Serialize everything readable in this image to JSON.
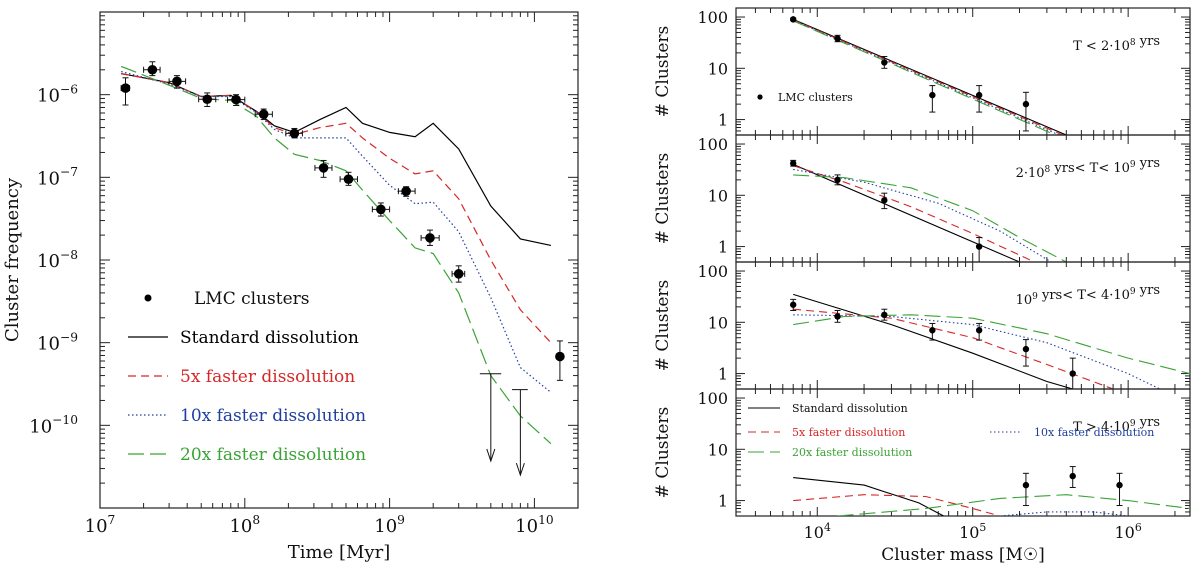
{
  "chart_data": [
    {
      "type": "line",
      "xlabel": "Time [Myr]",
      "ylabel": "Cluster frequency",
      "xscale": "log",
      "yscale": "log",
      "xlim": [
        10000000,
        20000000000
      ],
      "ylim": [
        1e-11,
        1e-05
      ],
      "xticks": [
        {
          "v": 10000000,
          "m": "10",
          "e": "7"
        },
        {
          "v": 100000000,
          "m": "10",
          "e": "8"
        },
        {
          "v": 1000000000,
          "m": "10",
          "e": "9"
        },
        {
          "v": 10000000000,
          "m": "10",
          "e": "10"
        }
      ],
      "yticks": [
        {
          "v": 1e-06,
          "m": "10",
          "e": "−6"
        },
        {
          "v": 1e-07,
          "m": "10",
          "e": "−7"
        },
        {
          "v": 1e-08,
          "m": "10",
          "e": "−8"
        },
        {
          "v": 1e-09,
          "m": "10",
          "e": "−9"
        },
        {
          "v": 1e-10,
          "m": "10",
          "e": "−10"
        }
      ],
      "legend_position": "bottom-left",
      "legend": [
        {
          "label": "LMC clusters",
          "style": "points",
          "color": "#000000"
        },
        {
          "label": "Standard dissolution",
          "style": "solid",
          "color": "#000000"
        },
        {
          "label": "5x faster dissolution",
          "style": "dashed",
          "color": "#d62728"
        },
        {
          "label": "10x faster dissolution",
          "style": "dotted",
          "color": "#1f3fa0"
        },
        {
          "label": "20x faster dissolution",
          "style": "longdash",
          "color": "#3aa335"
        }
      ],
      "series": [
        {
          "label_ref": 1,
          "x": [
            14000000,
            30000000,
            50000000,
            80000000,
            120000000,
            160000000,
            220000000,
            330000000,
            500000000,
            650000000,
            1000000000,
            1500000000,
            2000000000,
            3000000000,
            5000000000,
            8000000000,
            13000000000
          ],
          "y": [
            1.8e-06,
            1.4e-06,
            9.5e-07,
            9.8e-07,
            6.3e-07,
            4.2e-07,
            3.5e-07,
            5e-07,
            7e-07,
            4.5e-07,
            3.5e-07,
            3.1e-07,
            4.5e-07,
            2.2e-07,
            4.5e-08,
            1.8e-08,
            1.5e-08
          ]
        },
        {
          "label_ref": 2,
          "x": [
            14000000,
            30000000,
            50000000,
            80000000,
            120000000,
            160000000,
            220000000,
            330000000,
            500000000,
            650000000,
            1000000000,
            1500000000,
            2000000000,
            3000000000,
            5000000000,
            8000000000,
            13000000000
          ],
          "y": [
            1.8e-06,
            1.4e-06,
            9.5e-07,
            9.8e-07,
            6.2e-07,
            4e-07,
            3.3e-07,
            4e-07,
            4.5e-07,
            3e-07,
            1.7e-07,
            1.1e-07,
            1.2e-07,
            5.5e-08,
            1e-08,
            2.5e-09,
            1e-09
          ]
        },
        {
          "label_ref": 3,
          "x": [
            14000000,
            30000000,
            50000000,
            80000000,
            120000000,
            160000000,
            220000000,
            330000000,
            500000000,
            650000000,
            1000000000,
            1500000000,
            2000000000,
            3000000000,
            5000000000,
            8000000000,
            13000000000
          ],
          "y": [
            1.9e-06,
            1.35e-06,
            9.5e-07,
            9.5e-07,
            6.1e-07,
            3.8e-07,
            3e-07,
            3e-07,
            3e-07,
            1.8e-07,
            8e-08,
            4.8e-08,
            5e-08,
            2.2e-08,
            3.5e-09,
            5e-10,
            2.5e-10
          ]
        },
        {
          "label_ref": 4,
          "x": [
            14000000,
            30000000,
            50000000,
            80000000,
            120000000,
            160000000,
            220000000,
            330000000,
            500000000,
            650000000,
            1000000000,
            1500000000,
            2000000000,
            3000000000,
            5000000000,
            8000000000,
            13000000000
          ],
          "y": [
            2.2e-06,
            1.3e-06,
            9e-07,
            8.5e-07,
            5.5e-07,
            3e-07,
            1.9e-07,
            1.6e-07,
            1.2e-07,
            7e-08,
            3e-08,
            1.4e-08,
            1.2e-08,
            4e-09,
            4e-10,
            1.3e-10,
            6e-11
          ]
        }
      ],
      "points": [
        {
          "x": 15000000,
          "y": 1.2e-06,
          "xlo": 14000000,
          "xhi": 16000000,
          "ylo": 7.5e-07,
          "yhi": 1.6e-06
        },
        {
          "x": 23000000,
          "y": 2e-06,
          "xlo": 20000000,
          "xhi": 26000000,
          "ylo": 1.7e-06,
          "yhi": 2.5e-06
        },
        {
          "x": 34000000,
          "y": 1.45e-06,
          "xlo": 30000000,
          "xhi": 39000000,
          "ylo": 1.2e-06,
          "yhi": 1.7e-06
        },
        {
          "x": 55000000,
          "y": 8.8e-07,
          "xlo": 48000000,
          "xhi": 63000000,
          "ylo": 7.2e-07,
          "yhi": 1.05e-06
        },
        {
          "x": 87000000,
          "y": 8.7e-07,
          "xlo": 76000000,
          "xhi": 100000000,
          "ylo": 7.4e-07,
          "yhi": 1e-06
        },
        {
          "x": 135000000,
          "y": 5.8e-07,
          "xlo": 118000000,
          "xhi": 155000000,
          "ylo": 5e-07,
          "yhi": 6.7e-07
        },
        {
          "x": 220000000,
          "y": 3.4e-07,
          "xlo": 192000000,
          "xhi": 250000000,
          "ylo": 3e-07,
          "yhi": 3.9e-07
        },
        {
          "x": 350000000,
          "y": 1.3e-07,
          "xlo": 305000000,
          "xhi": 400000000,
          "ylo": 1e-07,
          "yhi": 1.6e-07
        },
        {
          "x": 520000000,
          "y": 9.5e-08,
          "xlo": 455000000,
          "xhi": 600000000,
          "ylo": 8e-08,
          "yhi": 1.15e-07
        },
        {
          "x": 870000000,
          "y": 4.1e-08,
          "xlo": 760000000,
          "xhi": 1000000000,
          "ylo": 3.4e-08,
          "yhi": 4.9e-08
        },
        {
          "x": 1300000000,
          "y": 6.8e-08,
          "xlo": 1150000000,
          "xhi": 1500000000,
          "ylo": 5.9e-08,
          "yhi": 7.7e-08
        },
        {
          "x": 1900000000,
          "y": 1.85e-08,
          "xlo": 1650000000,
          "xhi": 2200000000,
          "ylo": 1.5e-08,
          "yhi": 2.3e-08
        },
        {
          "x": 3000000000,
          "y": 6.8e-09,
          "xlo": 2700000000,
          "xhi": 3300000000,
          "ylo": 5.4e-09,
          "yhi": 8.5e-09
        },
        {
          "x": 15000000000,
          "y": 6.8e-10,
          "xlo": 15000000000,
          "xhi": 15000000000,
          "ylo": 3.5e-10,
          "yhi": 1.05e-09
        }
      ],
      "upper_limits": [
        {
          "x": 5000000000,
          "y": 4.2e-10,
          "xlo": 4200000000,
          "xhi": 5900000000,
          "arrow_to": 3.7e-11
        },
        {
          "x": 8000000000,
          "y": 2.7e-10,
          "xlo": 7000000000,
          "xhi": 9000000000,
          "arrow_to": 2.5e-11
        }
      ]
    },
    {
      "type": "line",
      "xlabel": "Cluster mass [M☉]",
      "ylabel": "# Clusters",
      "xscale": "log",
      "yscale": "log",
      "xlim": [
        3000,
        2500000
      ],
      "ylim": [
        0.5,
        150
      ],
      "xticks": [
        {
          "v": 10000,
          "m": "10",
          "e": "4"
        },
        {
          "v": 100000,
          "m": "10",
          "e": "5"
        },
        {
          "v": 1000000,
          "m": "10",
          "e": "6"
        }
      ],
      "yticks": [
        {
          "v": 1,
          "label": "1"
        },
        {
          "v": 10,
          "label": "10"
        },
        {
          "v": 100,
          "label": "100"
        }
      ],
      "panels": [
        {
          "annotation": {
            "text": "T < 2·10",
            "sup": "8",
            "tail": " yrs"
          },
          "legend": "LMC clusters",
          "points": [
            {
              "x": 7000,
              "y": 90,
              "ylo": 85,
              "yhi": 95
            },
            {
              "x": 13500,
              "y": 38,
              "ylo": 33,
              "yhi": 44
            },
            {
              "x": 27000,
              "y": 13,
              "ylo": 10,
              "yhi": 17
            },
            {
              "x": 55000,
              "y": 3,
              "ylo": 1.4,
              "yhi": 4.6
            },
            {
              "x": 110000,
              "y": 3,
              "ylo": 1.4,
              "yhi": 4.6
            },
            {
              "x": 220000,
              "y": 2,
              "ylo": 0.6,
              "yhi": 3.4
            }
          ],
          "series": [
            {
              "x": [
                7000,
                400000
              ],
              "y": [
                90,
                0.5
              ]
            },
            {
              "x": [
                7000,
                380000
              ],
              "y": [
                88,
                0.5
              ]
            },
            {
              "x": [
                7000,
                360000
              ],
              "y": [
                86,
                0.5
              ]
            },
            {
              "x": [
                7000,
                340000
              ],
              "y": [
                84,
                0.5
              ]
            }
          ]
        },
        {
          "annotation": {
            "text": "2·10",
            "sup": "8",
            "tail": " yrs< T< 10",
            "sup2": "9",
            "tail2": " yrs"
          },
          "points": [
            {
              "x": 7000,
              "y": 42,
              "ylo": 37,
              "yhi": 48
            },
            {
              "x": 13500,
              "y": 20,
              "ylo": 16,
              "yhi": 25
            },
            {
              "x": 27000,
              "y": 8,
              "ylo": 5.5,
              "yhi": 11
            },
            {
              "x": 110000,
              "y": 1,
              "ylo": 0.5,
              "yhi": 1.5
            }
          ],
          "series": [
            {
              "x": [
                7000,
                200000
              ],
              "y": [
                40,
                0.5
              ]
            },
            {
              "x": [
                7000,
                15000,
                40000,
                100000,
                250000
              ],
              "y": [
                38,
                18,
                6,
                1.8,
                0.5
              ]
            },
            {
              "x": [
                7000,
                20000,
                60000,
                150000,
                320000
              ],
              "y": [
                32,
                18,
                7,
                2,
                0.5
              ]
            },
            {
              "x": [
                7000,
                15000,
                40000,
                100000,
                200000,
                400000
              ],
              "y": [
                25,
                22,
                14,
                5,
                1.5,
                0.5
              ]
            }
          ]
        },
        {
          "annotation": {
            "text": "10",
            "sup": "9",
            "tail": " yrs< T< 4·10",
            "sup2": "9",
            "tail2": " yrs"
          },
          "points": [
            {
              "x": 7000,
              "y": 22,
              "ylo": 17,
              "yhi": 28
            },
            {
              "x": 13500,
              "y": 13,
              "ylo": 10,
              "yhi": 17
            },
            {
              "x": 27000,
              "y": 14,
              "ylo": 11,
              "yhi": 18
            },
            {
              "x": 55000,
              "y": 7,
              "ylo": 4.5,
              "yhi": 9.5
            },
            {
              "x": 110000,
              "y": 7,
              "ylo": 4.5,
              "yhi": 9.5
            },
            {
              "x": 220000,
              "y": 3,
              "ylo": 1.4,
              "yhi": 4.6
            },
            {
              "x": 440000,
              "y": 1,
              "ylo": 0.5,
              "yhi": 2
            }
          ],
          "series": [
            {
              "x": [
                7000,
                30000,
                100000,
                300000,
                440000
              ],
              "y": [
                35,
                9,
                2.5,
                0.7,
                0.5
              ]
            },
            {
              "x": [
                7000,
                30000,
                100000,
                300000,
                800000
              ],
              "y": [
                18,
                12,
                5,
                1.5,
                0.5
              ]
            },
            {
              "x": [
                7000,
                30000,
                100000,
                300000,
                1000000,
                1600000
              ],
              "y": [
                14,
                13,
                9,
                4,
                1,
                0.5
              ]
            },
            {
              "x": [
                7000,
                15000,
                40000,
                100000,
                300000,
                1000000,
                2500000
              ],
              "y": [
                9,
                13,
                14,
                12,
                6,
                2,
                1
              ]
            }
          ]
        },
        {
          "annotation": {
            "text": "T > 4·10",
            "sup": "9",
            "tail": " yrs"
          },
          "legend_position": "top-left",
          "legend": [
            {
              "label": "Standard dissolution",
              "style": "solid",
              "color": "#000000"
            },
            {
              "label": "5x faster dissolution",
              "style": "dashed",
              "color": "#d62728"
            },
            {
              "label": "10x faster dissolution",
              "style": "dotted",
              "color": "#1f3fa0"
            },
            {
              "label": "20x faster dissolution",
              "style": "longdash",
              "color": "#3aa335"
            }
          ],
          "points": [
            {
              "x": 220000,
              "y": 2,
              "ylo": 0.8,
              "yhi": 3.4
            },
            {
              "x": 440000,
              "y": 3,
              "ylo": 1.8,
              "yhi": 4.6
            },
            {
              "x": 880000,
              "y": 2,
              "ylo": 0.8,
              "yhi": 3.4
            }
          ],
          "series": [
            {
              "x": [
                7000,
                20000,
                45000,
                65000
              ],
              "y": [
                2.8,
                2,
                0.9,
                0.5
              ]
            },
            {
              "x": [
                7000,
                20000,
                50000,
                100000,
                150000
              ],
              "y": [
                1,
                1.3,
                1.2,
                0.7,
                0.5
              ]
            },
            {
              "x": [
                150000,
                300000,
                600000,
                1000000
              ],
              "y": [
                0.5,
                0.6,
                0.6,
                0.5
              ]
            },
            {
              "x": [
                13500,
                50000,
                150000,
                400000,
                1000000,
                2500000
              ],
              "y": [
                0.5,
                0.7,
                1.1,
                1.3,
                1,
                0.7
              ]
            }
          ]
        }
      ]
    }
  ]
}
